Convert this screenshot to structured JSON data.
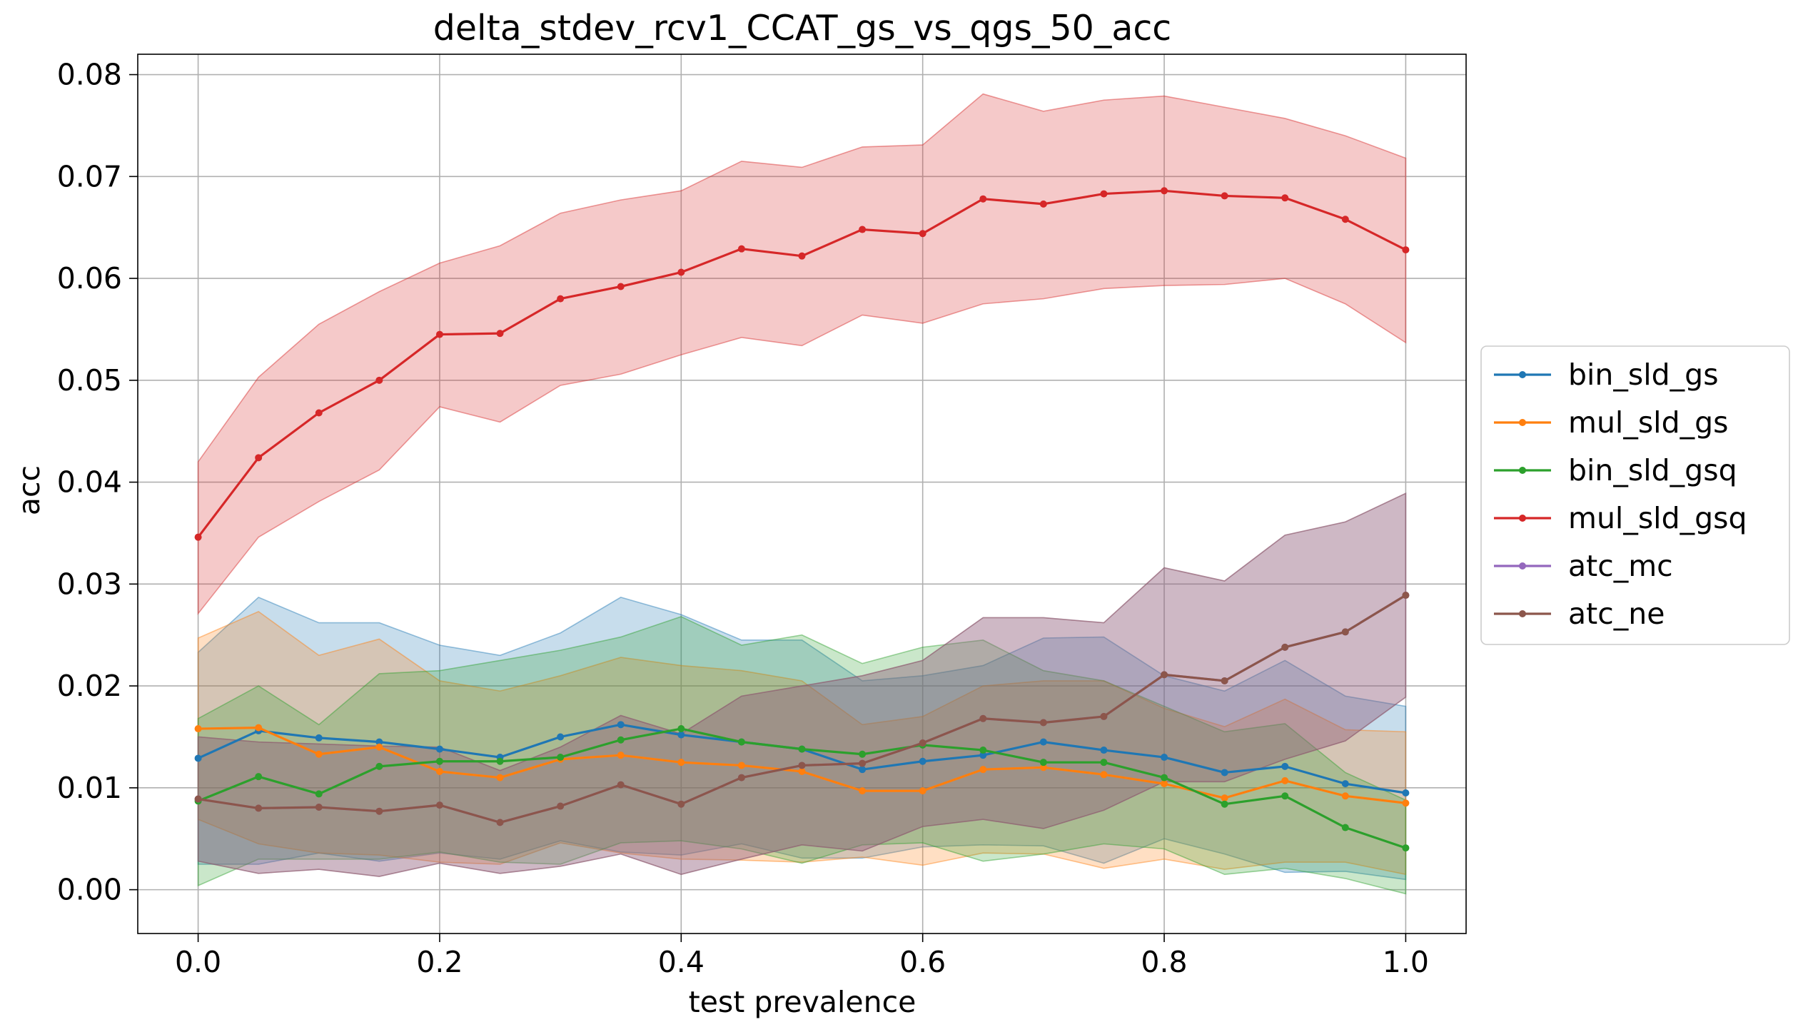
{
  "chart_data": {
    "type": "line",
    "title": "delta_stdev_rcv1_CCAT_gs_vs_qgs_50_acc",
    "xlabel": "test prevalence",
    "ylabel": "acc",
    "xlim": [
      -0.05,
      1.05
    ],
    "ylim": [
      -0.0043,
      0.082
    ],
    "xticks": [
      0.0,
      0.2,
      0.4,
      0.6,
      0.8,
      1.0
    ],
    "xtick_labels": [
      "0.0",
      "0.2",
      "0.4",
      "0.6",
      "0.8",
      "1.0"
    ],
    "yticks": [
      0.0,
      0.01,
      0.02,
      0.03,
      0.04,
      0.05,
      0.06,
      0.07,
      0.08
    ],
    "ytick_labels": [
      "0.00",
      "0.01",
      "0.02",
      "0.03",
      "0.04",
      "0.05",
      "0.06",
      "0.07",
      "0.08"
    ],
    "grid": true,
    "legend_position": "outside-right",
    "x": [
      0.0,
      0.05,
      0.1,
      0.15,
      0.2,
      0.25,
      0.3,
      0.35,
      0.4,
      0.45,
      0.5,
      0.55,
      0.6,
      0.65,
      0.7,
      0.75,
      0.8,
      0.85,
      0.9,
      0.95,
      1.0
    ],
    "series": [
      {
        "name": "bin_sld_gs",
        "color": "#1f77b4",
        "values": [
          0.0129,
          0.0156,
          0.0149,
          0.0145,
          0.0138,
          0.013,
          0.015,
          0.0162,
          0.0152,
          0.0145,
          0.0138,
          0.0118,
          0.0126,
          0.0132,
          0.0145,
          0.0137,
          0.013,
          0.0115,
          0.0121,
          0.0104,
          0.0095
        ],
        "band_upper": [
          0.0233,
          0.0287,
          0.0262,
          0.0262,
          0.024,
          0.023,
          0.0252,
          0.0287,
          0.027,
          0.0245,
          0.0245,
          0.0205,
          0.021,
          0.022,
          0.0247,
          0.0248,
          0.021,
          0.0195,
          0.0225,
          0.019,
          0.018
        ],
        "band_lower": [
          0.0025,
          0.0025,
          0.0036,
          0.0028,
          0.0036,
          0.003,
          0.0048,
          0.0037,
          0.0034,
          0.0045,
          0.0031,
          0.0031,
          0.0042,
          0.0044,
          0.0043,
          0.0026,
          0.005,
          0.0035,
          0.0017,
          0.0018,
          0.001
        ]
      },
      {
        "name": "mul_sld_gs",
        "color": "#ff7f0e",
        "values": [
          0.0158,
          0.0159,
          0.0133,
          0.014,
          0.0116,
          0.011,
          0.0128,
          0.0132,
          0.0125,
          0.0122,
          0.0116,
          0.0097,
          0.0097,
          0.0118,
          0.012,
          0.0113,
          0.0104,
          0.009,
          0.0107,
          0.0092,
          0.0085
        ],
        "band_upper": [
          0.0247,
          0.0273,
          0.023,
          0.0246,
          0.0205,
          0.0195,
          0.021,
          0.0228,
          0.022,
          0.0215,
          0.0205,
          0.0162,
          0.017,
          0.02,
          0.0205,
          0.0205,
          0.0178,
          0.016,
          0.0187,
          0.0157,
          0.0155
        ],
        "band_lower": [
          0.0069,
          0.0045,
          0.0036,
          0.0034,
          0.0027,
          0.0025,
          0.0046,
          0.0036,
          0.003,
          0.0029,
          0.0027,
          0.0032,
          0.0024,
          0.0036,
          0.0035,
          0.0021,
          0.003,
          0.002,
          0.0027,
          0.0027,
          0.0015
        ]
      },
      {
        "name": "bin_sld_gsq",
        "color": "#2ca02c",
        "values": [
          0.0087,
          0.0111,
          0.0094,
          0.0121,
          0.0126,
          0.0126,
          0.013,
          0.0147,
          0.0158,
          0.0145,
          0.0138,
          0.0133,
          0.0142,
          0.0137,
          0.0125,
          0.0125,
          0.011,
          0.0084,
          0.0092,
          0.0061,
          0.0041
        ],
        "band_upper": [
          0.0168,
          0.02,
          0.0162,
          0.0212,
          0.0215,
          0.0225,
          0.0235,
          0.0248,
          0.0268,
          0.024,
          0.025,
          0.0222,
          0.0238,
          0.0245,
          0.0215,
          0.0205,
          0.018,
          0.0155,
          0.0163,
          0.0115,
          0.0088
        ],
        "band_lower": [
          0.0004,
          0.003,
          0.003,
          0.003,
          0.0037,
          0.0027,
          0.0025,
          0.0046,
          0.0048,
          0.004,
          0.0026,
          0.0044,
          0.0046,
          0.0028,
          0.0035,
          0.0045,
          0.004,
          0.0015,
          0.0021,
          0.0011,
          -0.0004
        ]
      },
      {
        "name": "mul_sld_gsq",
        "color": "#d62728",
        "values": [
          0.0346,
          0.0424,
          0.0468,
          0.05,
          0.0545,
          0.0546,
          0.058,
          0.0592,
          0.0606,
          0.0629,
          0.0622,
          0.0648,
          0.0644,
          0.0678,
          0.0673,
          0.0683,
          0.0686,
          0.0681,
          0.0679,
          0.0658,
          0.0628
        ],
        "band_upper": [
          0.042,
          0.0503,
          0.0555,
          0.0587,
          0.0615,
          0.0632,
          0.0664,
          0.0677,
          0.0686,
          0.0715,
          0.0709,
          0.0729,
          0.0731,
          0.0781,
          0.0764,
          0.0775,
          0.0779,
          0.0768,
          0.0757,
          0.074,
          0.0718
        ],
        "band_lower": [
          0.0271,
          0.0346,
          0.0381,
          0.0412,
          0.0474,
          0.0459,
          0.0495,
          0.0506,
          0.0525,
          0.0542,
          0.0534,
          0.0564,
          0.0556,
          0.0575,
          0.058,
          0.059,
          0.0593,
          0.0594,
          0.06,
          0.0575,
          0.0537
        ]
      },
      {
        "name": "atc_mc",
        "color": "#9467bd",
        "values": [
          0.0089,
          0.008,
          0.0081,
          0.0077,
          0.0083,
          0.0066,
          0.0082,
          0.0103,
          0.0084,
          0.011,
          0.0122,
          0.0124,
          0.0144,
          0.0168,
          0.0164,
          0.017,
          0.0211,
          0.0205,
          0.0238,
          0.0253,
          0.0289
        ],
        "band_upper": [
          0.015,
          0.0145,
          0.0143,
          0.0141,
          0.014,
          0.0117,
          0.014,
          0.0171,
          0.0153,
          0.019,
          0.02,
          0.021,
          0.0225,
          0.0267,
          0.0267,
          0.0262,
          0.0316,
          0.0303,
          0.0348,
          0.0361,
          0.0389
        ],
        "band_lower": [
          0.0028,
          0.0016,
          0.002,
          0.0013,
          0.0026,
          0.0016,
          0.0023,
          0.0035,
          0.0015,
          0.003,
          0.0044,
          0.0038,
          0.0062,
          0.0069,
          0.006,
          0.0078,
          0.0106,
          0.0106,
          0.0128,
          0.0146,
          0.0189
        ]
      },
      {
        "name": "atc_ne",
        "color": "#8c564b",
        "values": [
          0.0089,
          0.008,
          0.0081,
          0.0077,
          0.0083,
          0.0066,
          0.0082,
          0.0103,
          0.0084,
          0.011,
          0.0122,
          0.0124,
          0.0144,
          0.0168,
          0.0164,
          0.017,
          0.0211,
          0.0205,
          0.0238,
          0.0253,
          0.0289
        ],
        "band_upper": [
          0.015,
          0.0145,
          0.0143,
          0.0141,
          0.014,
          0.0117,
          0.014,
          0.0171,
          0.0153,
          0.019,
          0.02,
          0.021,
          0.0225,
          0.0267,
          0.0267,
          0.0262,
          0.0316,
          0.0303,
          0.0348,
          0.0361,
          0.0389
        ],
        "band_lower": [
          0.0028,
          0.0016,
          0.002,
          0.0013,
          0.0026,
          0.0016,
          0.0023,
          0.0035,
          0.0015,
          0.003,
          0.0044,
          0.0038,
          0.0062,
          0.0069,
          0.006,
          0.0078,
          0.0106,
          0.0106,
          0.0128,
          0.0146,
          0.0189
        ]
      }
    ]
  }
}
